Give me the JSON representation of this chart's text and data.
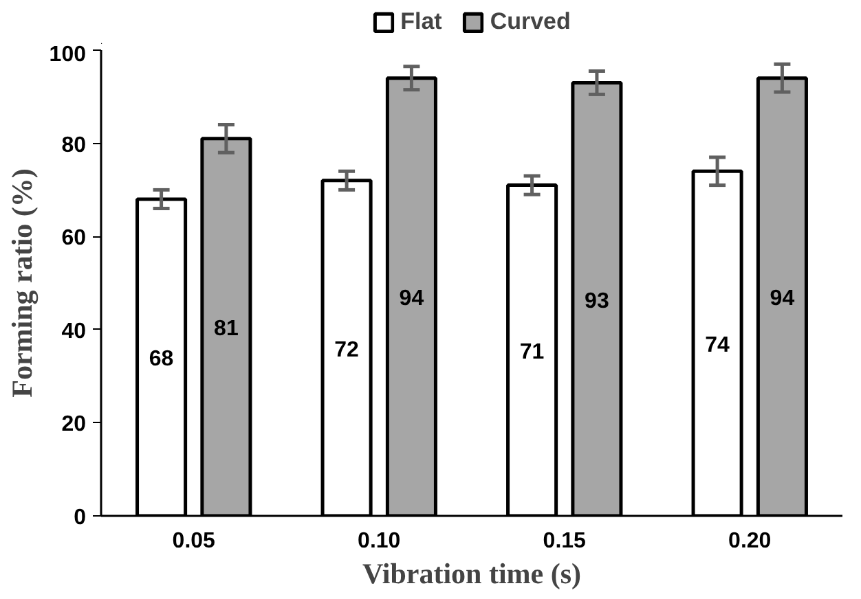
{
  "chart_data": {
    "type": "bar",
    "xlabel": "Vibration time (s)",
    "ylabel": "Forming ratio (%)",
    "categories": [
      "0.05",
      "0.10",
      "0.15",
      "0.20"
    ],
    "series": [
      {
        "name": "Flat",
        "color": "#ffffff",
        "values": [
          68,
          72,
          71,
          74
        ],
        "errors": [
          2,
          2,
          2,
          3
        ]
      },
      {
        "name": "Curved",
        "color": "#a6a6a6",
        "values": [
          81,
          94,
          93,
          94
        ],
        "errors": [
          3,
          2.5,
          2.5,
          3
        ]
      }
    ],
    "ylim": [
      0,
      100
    ],
    "yticks": [
      0,
      20,
      40,
      60,
      80,
      100
    ],
    "data_labels": true,
    "legend": "top",
    "grid": false
  }
}
